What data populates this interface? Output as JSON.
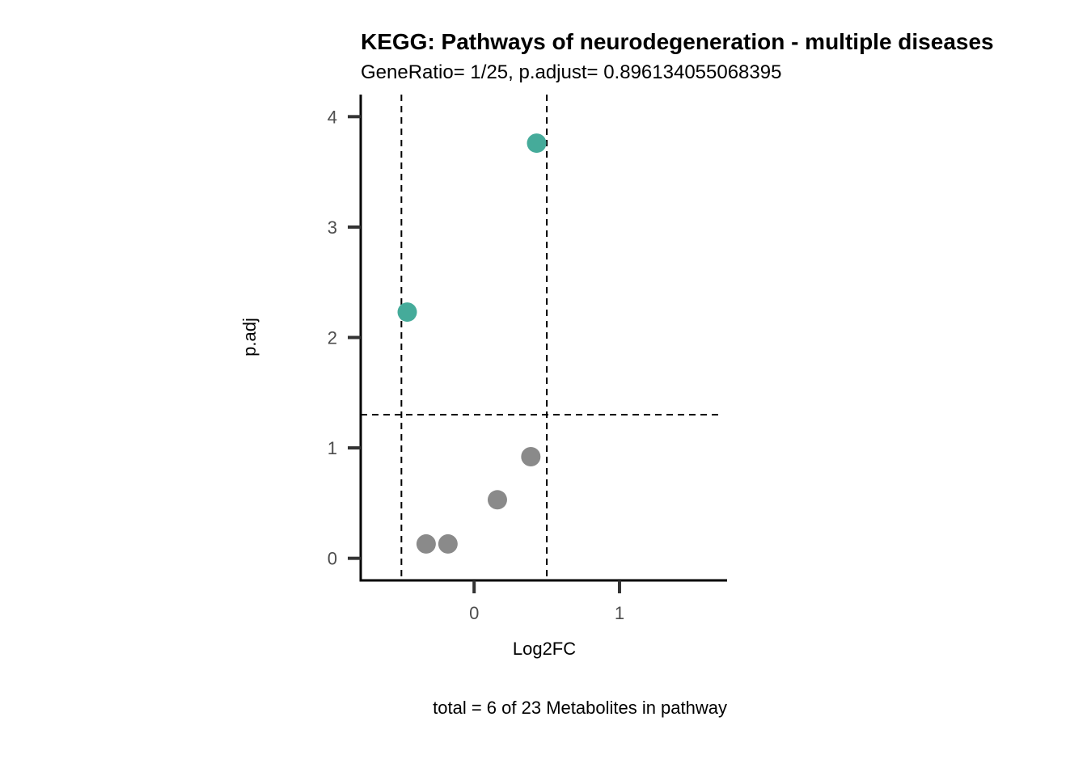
{
  "chart_data": {
    "type": "scatter",
    "title": "KEGG: Pathways of neurodegeneration - multiple diseases",
    "subtitle": "GeneRatio= 1/25, p.adjust= 0.896134055068395",
    "xlabel": "Log2FC",
    "ylabel": "p.adj",
    "caption": "total = 6 of 23 Metabolites in pathway",
    "xlim": [
      -0.78,
      1.74
    ],
    "ylim": [
      -0.2,
      4.2
    ],
    "x_ticks": [
      0,
      1
    ],
    "y_ticks": [
      0,
      1,
      2,
      3,
      4
    ],
    "reference_lines": {
      "vertical": [
        -0.5,
        0.5
      ],
      "horizontal": [
        1.301
      ]
    },
    "grid": false,
    "legend": "none",
    "colors": {
      "significant": "#45ab9a",
      "not_significant": "#8a8a8a",
      "axis": "#000000",
      "tick": "#333333"
    },
    "points": [
      {
        "x": 0.43,
        "y": 3.76,
        "group": "significant"
      },
      {
        "x": -0.46,
        "y": 2.23,
        "group": "significant"
      },
      {
        "x": 0.39,
        "y": 0.92,
        "group": "not_significant"
      },
      {
        "x": 0.16,
        "y": 0.53,
        "group": "not_significant"
      },
      {
        "x": -0.33,
        "y": 0.13,
        "group": "not_significant"
      },
      {
        "x": -0.18,
        "y": 0.13,
        "group": "not_significant"
      }
    ]
  }
}
